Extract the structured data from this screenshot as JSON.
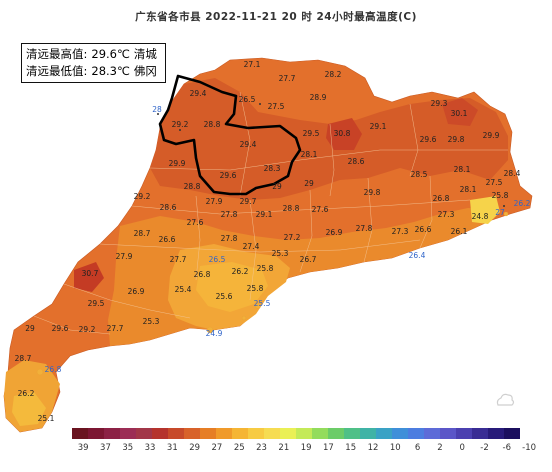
{
  "title": "广东省各市县 2022-11-21 20 时 24小时最高温度(C)",
  "stats": {
    "max_label": "清远最高值:",
    "max_value": "29.6℃",
    "max_place": "清城",
    "min_label": "清远最低值:",
    "min_value": "28.3℃",
    "min_place": "佛冈"
  },
  "legend": {
    "colors": [
      "#6a1420",
      "#7c1632",
      "#8c2145",
      "#9c2d55",
      "#a23648",
      "#b5332d",
      "#c74a2a",
      "#d8622a",
      "#e67e25",
      "#f09a2a",
      "#f5b534",
      "#f7cb43",
      "#f6dc52",
      "#eaf055",
      "#c4ea58",
      "#93dc5c",
      "#6ccc68",
      "#4fc087",
      "#3fb3a6",
      "#3aa2c5",
      "#3f8fd9",
      "#4c7de0",
      "#5d6bd8",
      "#5b56c8",
      "#4b40b0",
      "#392c94",
      "#281b7a",
      "#1b0f5e"
    ],
    "labels": [
      "39",
      "37",
      "35",
      "33",
      "31",
      "29",
      "27",
      "25",
      "23",
      "21",
      "19",
      "17",
      "15",
      "12",
      "10",
      "6",
      "2",
      "0",
      "-2",
      "-6",
      "-10"
    ]
  },
  "stations": [
    {
      "v": "27.1"
    },
    {
      "v": "27.7"
    },
    {
      "v": "28.2"
    },
    {
      "v": "29.4"
    },
    {
      "v": "26.5"
    },
    {
      "v": "27.5"
    },
    {
      "v": "28.9"
    },
    {
      "v": "28"
    },
    {
      "v": "29.2"
    },
    {
      "v": "28.8"
    },
    {
      "v": "29.5"
    },
    {
      "v": "30.8"
    },
    {
      "v": "29.1"
    },
    {
      "v": "29.3"
    },
    {
      "v": "30.1"
    },
    {
      "v": "29.6"
    },
    {
      "v": "29.8"
    },
    {
      "v": "29.9"
    },
    {
      "v": "29.4"
    },
    {
      "v": "28.1"
    },
    {
      "v": "29.9"
    },
    {
      "v": "28.3"
    },
    {
      "v": "28.6"
    },
    {
      "v": "28.5"
    },
    {
      "v": "28.1"
    },
    {
      "v": "29.6"
    },
    {
      "v": "29"
    },
    {
      "v": "29"
    },
    {
      "v": "27.5"
    },
    {
      "v": "28.4"
    },
    {
      "v": "29.2"
    },
    {
      "v": "28.8"
    },
    {
      "v": "29.7"
    },
    {
      "v": "29.8"
    },
    {
      "v": "25.8"
    },
    {
      "v": "26.2"
    },
    {
      "v": "27.9"
    },
    {
      "v": "27.8"
    },
    {
      "v": "29.1"
    },
    {
      "v": "28.8"
    },
    {
      "v": "27.6"
    },
    {
      "v": "26.8"
    },
    {
      "v": "28.1"
    },
    {
      "v": "27.3"
    },
    {
      "v": "24.8"
    },
    {
      "v": "27"
    },
    {
      "v": "28.6"
    },
    {
      "v": "27.6"
    },
    {
      "v": "26.9"
    },
    {
      "v": "27.8"
    },
    {
      "v": "27.3"
    },
    {
      "v": "26.6"
    },
    {
      "v": "26.1"
    },
    {
      "v": "28.7"
    },
    {
      "v": "26.6"
    },
    {
      "v": "27.8"
    },
    {
      "v": "27.2"
    },
    {
      "v": "27.4"
    },
    {
      "v": "27.9"
    },
    {
      "v": "27.7"
    },
    {
      "v": "26.5"
    },
    {
      "v": "25.3"
    },
    {
      "v": "26.7"
    },
    {
      "v": "26.4"
    },
    {
      "v": "30.7"
    },
    {
      "v": "26.8"
    },
    {
      "v": "26.2"
    },
    {
      "v": "25.8"
    },
    {
      "v": "26.9"
    },
    {
      "v": "25.4"
    },
    {
      "v": "25.8"
    },
    {
      "v": "25.6"
    },
    {
      "v": "25.5"
    },
    {
      "v": "29.5"
    },
    {
      "v": "25.3"
    },
    {
      "v": "29"
    },
    {
      "v": "29.6"
    },
    {
      "v": "29.2"
    },
    {
      "v": "27.7"
    },
    {
      "v": "24.9"
    },
    {
      "v": "28.7"
    },
    {
      "v": "26.8"
    },
    {
      "v": "26.2"
    },
    {
      "v": "25.1"
    }
  ]
}
